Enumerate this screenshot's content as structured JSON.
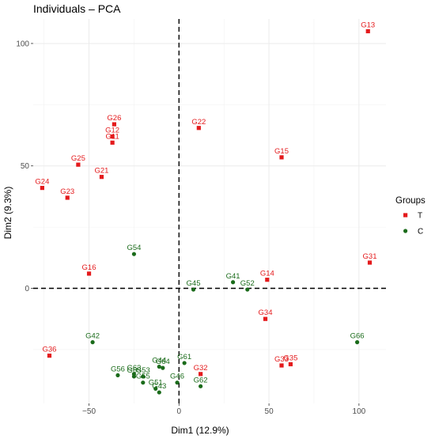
{
  "chart_data": {
    "type": "scatter",
    "title": "Individuals – PCA",
    "xlabel": "Dim1 (12.9%)",
    "ylabel": "Dim2 (9.3%)",
    "xlim": [
      -81,
      115
    ],
    "ylim": [
      -47,
      110
    ],
    "xticks": [
      -50,
      0,
      50,
      100
    ],
    "yticks": [
      0,
      50,
      100
    ],
    "xtick_labels": [
      "−50",
      "0",
      "50",
      "100"
    ],
    "ytick_labels": [
      "0",
      "50",
      "100"
    ],
    "grid": true,
    "reference_lines": {
      "x": 0,
      "y": 0,
      "style": "dashed"
    },
    "legend": {
      "title": "Groups",
      "position": "right",
      "entries": [
        {
          "name": "T",
          "color": "#e41a1c",
          "shape": "square"
        },
        {
          "name": "C",
          "color": "#1a6b1a",
          "shape": "circle"
        }
      ]
    },
    "series": [
      {
        "name": "T",
        "color": "#e41a1c",
        "shape": "square",
        "points": [
          {
            "label": "G13",
            "x": 105,
            "y": 105
          },
          {
            "label": "G26",
            "x": -36,
            "y": 67
          },
          {
            "label": "G12",
            "x": -37,
            "y": 62
          },
          {
            "label": "G11",
            "x": -37,
            "y": 59.5
          },
          {
            "label": "G22",
            "x": 11,
            "y": 65.5
          },
          {
            "label": "G15",
            "x": 57,
            "y": 53.5
          },
          {
            "label": "G25",
            "x": -56,
            "y": 50.5
          },
          {
            "label": "G21",
            "x": -43,
            "y": 45.5
          },
          {
            "label": "G24",
            "x": -76,
            "y": 41
          },
          {
            "label": "G23",
            "x": -62,
            "y": 37
          },
          {
            "label": "G31",
            "x": 106,
            "y": 10.5
          },
          {
            "label": "G16",
            "x": -50,
            "y": 6
          },
          {
            "label": "G14",
            "x": 49,
            "y": 3.5
          },
          {
            "label": "G34",
            "x": 48,
            "y": -12.5
          },
          {
            "label": "G36",
            "x": -72,
            "y": -27.5
          },
          {
            "label": "G32",
            "x": 12,
            "y": -35
          },
          {
            "label": "G33",
            "x": 57,
            "y": -31.5
          },
          {
            "label": "G35",
            "x": 62,
            "y": -31
          }
        ]
      },
      {
        "name": "C",
        "color": "#1a6b1a",
        "shape": "circle",
        "points": [
          {
            "label": "G54",
            "x": -25,
            "y": 14
          },
          {
            "label": "G41",
            "x": 30,
            "y": 2.5
          },
          {
            "label": "G52",
            "x": 38,
            "y": -0.5
          },
          {
            "label": "G45",
            "x": 8,
            "y": -0.5
          },
          {
            "label": "G42",
            "x": -48,
            "y": -22
          },
          {
            "label": "G66",
            "x": 99,
            "y": -22
          },
          {
            "label": "G61",
            "x": 3,
            "y": -30.5
          },
          {
            "label": "G44",
            "x": -11,
            "y": -32
          },
          {
            "label": "G64",
            "x": -9,
            "y": -32.5
          },
          {
            "label": "G63",
            "x": -25,
            "y": -35
          },
          {
            "label": "G56",
            "x": -34,
            "y": -35.5
          },
          {
            "label": "G65",
            "x": -25,
            "y": -36
          },
          {
            "label": "G53",
            "x": -20,
            "y": -36
          },
          {
            "label": "G46",
            "x": -1,
            "y": -38.5
          },
          {
            "label": "G55",
            "x": -20,
            "y": -38.5
          },
          {
            "label": "G51",
            "x": -13,
            "y": -41
          },
          {
            "label": "G62",
            "x": 12,
            "y": -40
          },
          {
            "label": "G43",
            "x": -11,
            "y": -42.5
          }
        ]
      }
    ]
  }
}
